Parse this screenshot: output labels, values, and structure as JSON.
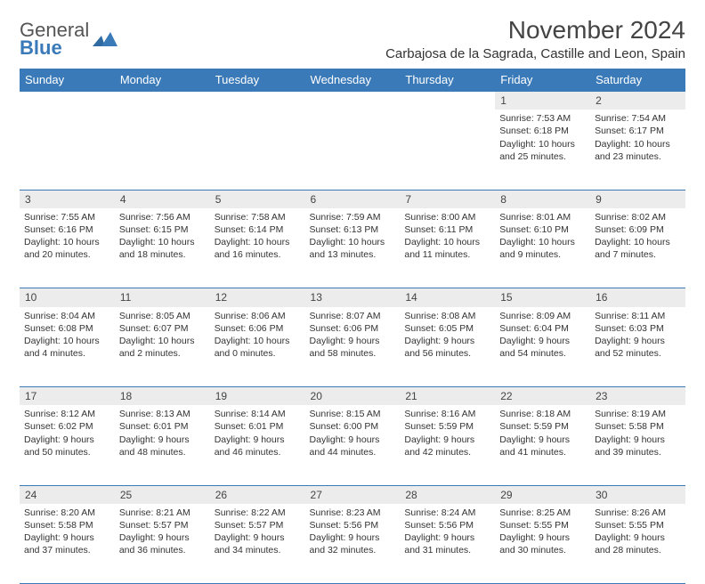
{
  "logo": {
    "text1": "General",
    "text2": "Blue"
  },
  "title": "November 2024",
  "subtitle": "Carbajosa de la Sagrada, Castille and Leon, Spain",
  "colors": {
    "header_bg": "#3a7ab8",
    "header_fg": "#ffffff",
    "daynum_bg": "#ececec",
    "border": "#3a7ab8",
    "text": "#333333"
  },
  "day_headers": [
    "Sunday",
    "Monday",
    "Tuesday",
    "Wednesday",
    "Thursday",
    "Friday",
    "Saturday"
  ],
  "weeks": [
    [
      null,
      null,
      null,
      null,
      null,
      {
        "n": "1",
        "sr": "7:53 AM",
        "ss": "6:18 PM",
        "dl": "10 hours and 25 minutes."
      },
      {
        "n": "2",
        "sr": "7:54 AM",
        "ss": "6:17 PM",
        "dl": "10 hours and 23 minutes."
      }
    ],
    [
      {
        "n": "3",
        "sr": "7:55 AM",
        "ss": "6:16 PM",
        "dl": "10 hours and 20 minutes."
      },
      {
        "n": "4",
        "sr": "7:56 AM",
        "ss": "6:15 PM",
        "dl": "10 hours and 18 minutes."
      },
      {
        "n": "5",
        "sr": "7:58 AM",
        "ss": "6:14 PM",
        "dl": "10 hours and 16 minutes."
      },
      {
        "n": "6",
        "sr": "7:59 AM",
        "ss": "6:13 PM",
        "dl": "10 hours and 13 minutes."
      },
      {
        "n": "7",
        "sr": "8:00 AM",
        "ss": "6:11 PM",
        "dl": "10 hours and 11 minutes."
      },
      {
        "n": "8",
        "sr": "8:01 AM",
        "ss": "6:10 PM",
        "dl": "10 hours and 9 minutes."
      },
      {
        "n": "9",
        "sr": "8:02 AM",
        "ss": "6:09 PM",
        "dl": "10 hours and 7 minutes."
      }
    ],
    [
      {
        "n": "10",
        "sr": "8:04 AM",
        "ss": "6:08 PM",
        "dl": "10 hours and 4 minutes."
      },
      {
        "n": "11",
        "sr": "8:05 AM",
        "ss": "6:07 PM",
        "dl": "10 hours and 2 minutes."
      },
      {
        "n": "12",
        "sr": "8:06 AM",
        "ss": "6:06 PM",
        "dl": "10 hours and 0 minutes."
      },
      {
        "n": "13",
        "sr": "8:07 AM",
        "ss": "6:06 PM",
        "dl": "9 hours and 58 minutes."
      },
      {
        "n": "14",
        "sr": "8:08 AM",
        "ss": "6:05 PM",
        "dl": "9 hours and 56 minutes."
      },
      {
        "n": "15",
        "sr": "8:09 AM",
        "ss": "6:04 PM",
        "dl": "9 hours and 54 minutes."
      },
      {
        "n": "16",
        "sr": "8:11 AM",
        "ss": "6:03 PM",
        "dl": "9 hours and 52 minutes."
      }
    ],
    [
      {
        "n": "17",
        "sr": "8:12 AM",
        "ss": "6:02 PM",
        "dl": "9 hours and 50 minutes."
      },
      {
        "n": "18",
        "sr": "8:13 AM",
        "ss": "6:01 PM",
        "dl": "9 hours and 48 minutes."
      },
      {
        "n": "19",
        "sr": "8:14 AM",
        "ss": "6:01 PM",
        "dl": "9 hours and 46 minutes."
      },
      {
        "n": "20",
        "sr": "8:15 AM",
        "ss": "6:00 PM",
        "dl": "9 hours and 44 minutes."
      },
      {
        "n": "21",
        "sr": "8:16 AM",
        "ss": "5:59 PM",
        "dl": "9 hours and 42 minutes."
      },
      {
        "n": "22",
        "sr": "8:18 AM",
        "ss": "5:59 PM",
        "dl": "9 hours and 41 minutes."
      },
      {
        "n": "23",
        "sr": "8:19 AM",
        "ss": "5:58 PM",
        "dl": "9 hours and 39 minutes."
      }
    ],
    [
      {
        "n": "24",
        "sr": "8:20 AM",
        "ss": "5:58 PM",
        "dl": "9 hours and 37 minutes."
      },
      {
        "n": "25",
        "sr": "8:21 AM",
        "ss": "5:57 PM",
        "dl": "9 hours and 36 minutes."
      },
      {
        "n": "26",
        "sr": "8:22 AM",
        "ss": "5:57 PM",
        "dl": "9 hours and 34 minutes."
      },
      {
        "n": "27",
        "sr": "8:23 AM",
        "ss": "5:56 PM",
        "dl": "9 hours and 32 minutes."
      },
      {
        "n": "28",
        "sr": "8:24 AM",
        "ss": "5:56 PM",
        "dl": "9 hours and 31 minutes."
      },
      {
        "n": "29",
        "sr": "8:25 AM",
        "ss": "5:55 PM",
        "dl": "9 hours and 30 minutes."
      },
      {
        "n": "30",
        "sr": "8:26 AM",
        "ss": "5:55 PM",
        "dl": "9 hours and 28 minutes."
      }
    ]
  ],
  "labels": {
    "sunrise": "Sunrise:",
    "sunset": "Sunset:",
    "daylight": "Daylight:"
  }
}
